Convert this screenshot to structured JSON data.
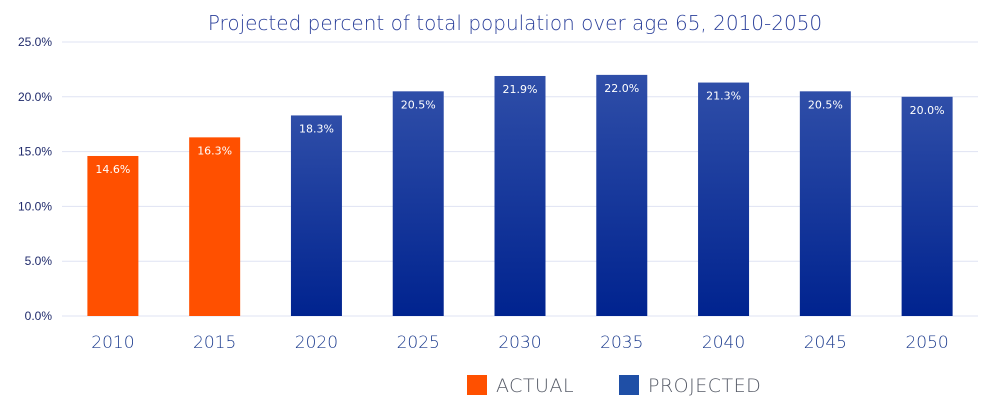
{
  "chart_data": {
    "type": "bar",
    "title": "Projected percent of total population over age 65, 2010-2050",
    "xlabel": "",
    "ylabel": "",
    "categories": [
      "2010",
      "2015",
      "2020",
      "2025",
      "2030",
      "2035",
      "2040",
      "2045",
      "2050"
    ],
    "values": [
      14.6,
      16.3,
      18.3,
      20.5,
      21.9,
      22.0,
      21.3,
      20.5,
      20.0
    ],
    "data_labels": [
      "14.6%",
      "16.3%",
      "18.3%",
      "20.5%",
      "21.9%",
      "22.0%",
      "21.3%",
      "20.5%",
      "20.0%"
    ],
    "series_type": [
      "actual",
      "actual",
      "projected",
      "projected",
      "projected",
      "projected",
      "projected",
      "projected",
      "projected"
    ],
    "ylim": [
      0,
      25
    ],
    "yticks": [
      0,
      5,
      10,
      15,
      20,
      25
    ],
    "ytick_labels": [
      "0.0%",
      "5.0%",
      "10.0%",
      "15.0%",
      "20.0%",
      "25.0%"
    ],
    "grid": true,
    "legend_position": "bottom-center",
    "legend": [
      {
        "key": "actual",
        "label": "ACTUAL",
        "color": "#ff5000"
      },
      {
        "key": "projected",
        "label": "PROJECTED",
        "color": "#1f4fa6"
      }
    ],
    "colors": {
      "actual": "#ff5000",
      "projected_top": "#2f4ea8",
      "projected_bottom": "#00238f",
      "title": "#2a3f9a",
      "grid": "#dfe3f3"
    }
  }
}
